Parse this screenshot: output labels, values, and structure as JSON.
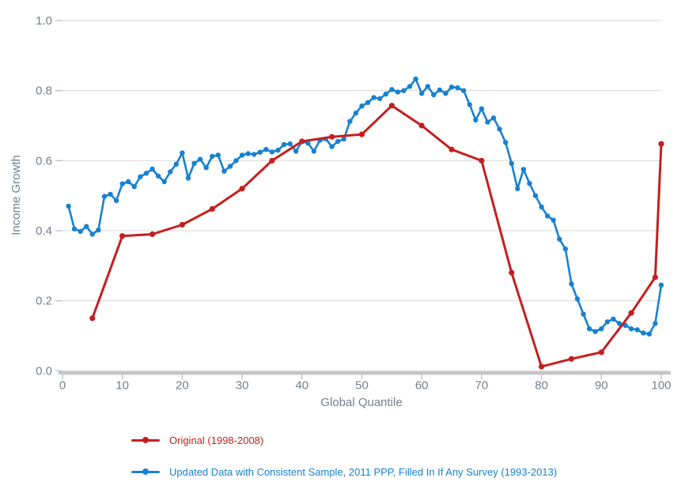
{
  "chart_data": {
    "type": "line",
    "title": "",
    "xlabel": "Global Quantile",
    "ylabel": "Income Growth",
    "xlim": [
      0,
      100
    ],
    "ylim": [
      0.0,
      1.0
    ],
    "x_ticks": [
      0,
      10,
      20,
      30,
      40,
      50,
      60,
      70,
      80,
      90,
      100
    ],
    "y_ticks": [
      0.0,
      0.2,
      0.4,
      0.6,
      0.8,
      1.0
    ],
    "y_tick_labels": [
      "0.0",
      "0.2",
      "0.4",
      "0.6",
      "0.8",
      "1.0"
    ],
    "grid": "horizontal",
    "legend_position": "bottom-left",
    "series": [
      {
        "name": "Original (1998-2008)",
        "color": "#c41f1f",
        "marker": "circle",
        "x": [
          5,
          10,
          15,
          20,
          25,
          30,
          35,
          40,
          45,
          50,
          55,
          60,
          65,
          70,
          75,
          80,
          85,
          90,
          95,
          99,
          100
        ],
        "values": [
          0.15,
          0.385,
          0.39,
          0.417,
          0.462,
          0.52,
          0.6,
          0.655,
          0.668,
          0.675,
          0.757,
          0.7,
          0.632,
          0.6,
          0.28,
          0.012,
          0.034,
          0.053,
          0.165,
          0.267,
          0.648
        ]
      },
      {
        "name": "Updated Data with Consistent Sample, 2011 PPP, Filled In If Any Survey (1993-2013)",
        "color": "#1881d1",
        "marker": "circle",
        "x": [
          1,
          2,
          3,
          4,
          5,
          6,
          7,
          8,
          9,
          10,
          11,
          12,
          13,
          14,
          15,
          16,
          17,
          18,
          19,
          20,
          21,
          22,
          23,
          24,
          25,
          26,
          27,
          28,
          29,
          30,
          31,
          32,
          33,
          34,
          35,
          36,
          37,
          38,
          39,
          40,
          41,
          42,
          43,
          44,
          45,
          46,
          47,
          48,
          49,
          50,
          51,
          52,
          53,
          54,
          55,
          56,
          57,
          58,
          59,
          60,
          61,
          62,
          63,
          64,
          65,
          66,
          67,
          68,
          69,
          70,
          71,
          72,
          73,
          74,
          75,
          76,
          77,
          78,
          79,
          80,
          81,
          82,
          83,
          84,
          85,
          86,
          87,
          88,
          89,
          90,
          91,
          92,
          93,
          94,
          95,
          96,
          97,
          98,
          99,
          100
        ],
        "values": [
          0.47,
          0.405,
          0.398,
          0.412,
          0.39,
          0.402,
          0.498,
          0.504,
          0.486,
          0.534,
          0.54,
          0.526,
          0.554,
          0.564,
          0.576,
          0.556,
          0.54,
          0.568,
          0.59,
          0.622,
          0.55,
          0.592,
          0.604,
          0.58,
          0.612,
          0.616,
          0.57,
          0.584,
          0.6,
          0.616,
          0.62,
          0.618,
          0.624,
          0.632,
          0.625,
          0.63,
          0.646,
          0.648,
          0.627,
          0.655,
          0.65,
          0.627,
          0.658,
          0.662,
          0.64,
          0.655,
          0.662,
          0.712,
          0.736,
          0.756,
          0.766,
          0.78,
          0.777,
          0.79,
          0.803,
          0.796,
          0.8,
          0.812,
          0.833,
          0.792,
          0.812,
          0.788,
          0.802,
          0.792,
          0.81,
          0.808,
          0.8,
          0.76,
          0.716,
          0.748,
          0.71,
          0.722,
          0.69,
          0.652,
          0.592,
          0.52,
          0.575,
          0.535,
          0.5,
          0.468,
          0.442,
          0.43,
          0.376,
          0.348,
          0.248,
          0.205,
          0.162,
          0.12,
          0.112,
          0.12,
          0.14,
          0.148,
          0.135,
          0.13,
          0.12,
          0.117,
          0.108,
          0.105,
          0.135,
          0.245
        ]
      }
    ]
  },
  "colors": {
    "grid": "#d9d9d9",
    "axis_line": "#c6c6c6",
    "tick_label": "#75808c"
  }
}
